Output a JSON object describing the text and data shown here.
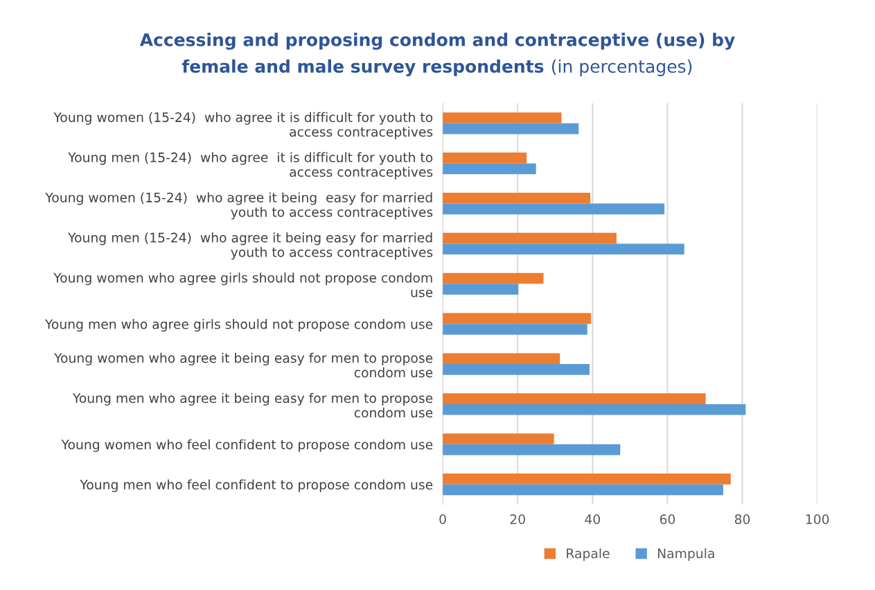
{
  "chart_data": {
    "type": "bar",
    "orientation": "horizontal",
    "title": "Accessing and proposing condom and contraceptive (use) by female and male survey respondents",
    "subtitle": "(in percentages)",
    "categories": [
      "Young women (15-24)  who agree it is difficult for youth to\naccess contraceptives",
      "Young men (15-24)  who agree  it is difficult for youth to\naccess contraceptives",
      "Young women (15-24)  who agree it being  easy for married\nyouth to access contraceptives",
      "Young men (15-24)  who agree it being easy for married\nyouth to access contraceptives",
      "Young women who agree girls should not propose condom\nuse",
      "Young men who agree girls should not propose condom use",
      "Young women who agree it being easy for men to propose\ncondom use",
      "Young men who agree it being easy for men to propose\ncondom use",
      "Young women who feel confident to propose condom use",
      "Young men who feel confident to propose condom use"
    ],
    "series": [
      {
        "name": "Rapale",
        "color": "#ed7d31",
        "values": [
          31.7,
          22.4,
          39.4,
          46.4,
          26.9,
          39.6,
          31.3,
          70.2,
          29.7,
          76.9
        ]
      },
      {
        "name": "Nampula",
        "color": "#5b9bd5",
        "values": [
          36.3,
          24.9,
          59.2,
          64.5,
          20.2,
          38.6,
          39.2,
          80.9,
          47.4,
          74.9
        ]
      }
    ],
    "xlim": [
      0,
      100
    ],
    "xticks": [
      0,
      20,
      40,
      60,
      80,
      100
    ],
    "grid": "x",
    "legend": "bottom"
  }
}
